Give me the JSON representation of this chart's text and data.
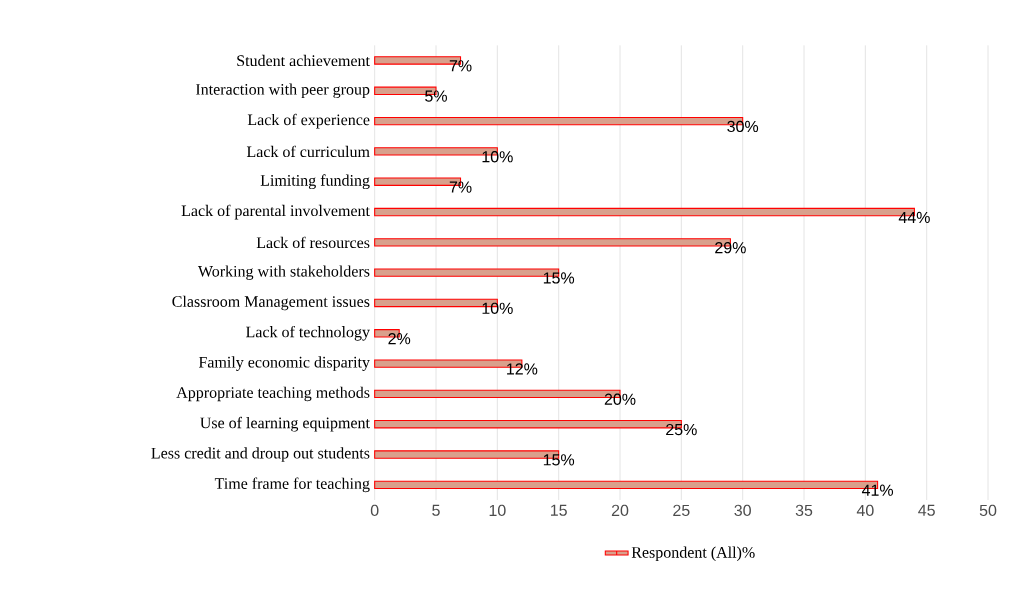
{
  "chart_data": {
    "type": "bar",
    "orientation": "horizontal",
    "categories": [
      "Student achievement",
      "Interaction with peer group",
      "Lack of experience",
      "Lack of curriculum",
      "Limiting funding",
      "Lack of parental involvement",
      "Lack of resources",
      "Working with stakeholders",
      "Classroom Management issues",
      "Lack of technology",
      "Family economic disparity",
      "Appropriate teaching methods",
      "Use of learning equipment",
      "Less credit and droup out students",
      "Time frame for teaching"
    ],
    "series": [
      {
        "name": "Respondent (All)%",
        "color": "#d9a08c",
        "values": [
          7,
          5,
          30,
          10,
          7,
          44,
          29,
          15,
          10,
          2,
          12,
          20,
          25,
          15,
          41
        ],
        "value_labels": [
          "7%",
          "5%",
          "30%",
          "10%",
          "7%",
          "44%",
          "29%",
          "15%",
          "10%",
          "2%",
          "12%",
          "20%",
          "25%",
          "15%",
          "41%"
        ]
      }
    ],
    "xlim": [
      0,
      50
    ],
    "xticks": [
      0,
      5,
      10,
      15,
      20,
      25,
      30,
      35,
      40,
      45,
      50
    ],
    "grid": "x",
    "legend": "bottom"
  }
}
